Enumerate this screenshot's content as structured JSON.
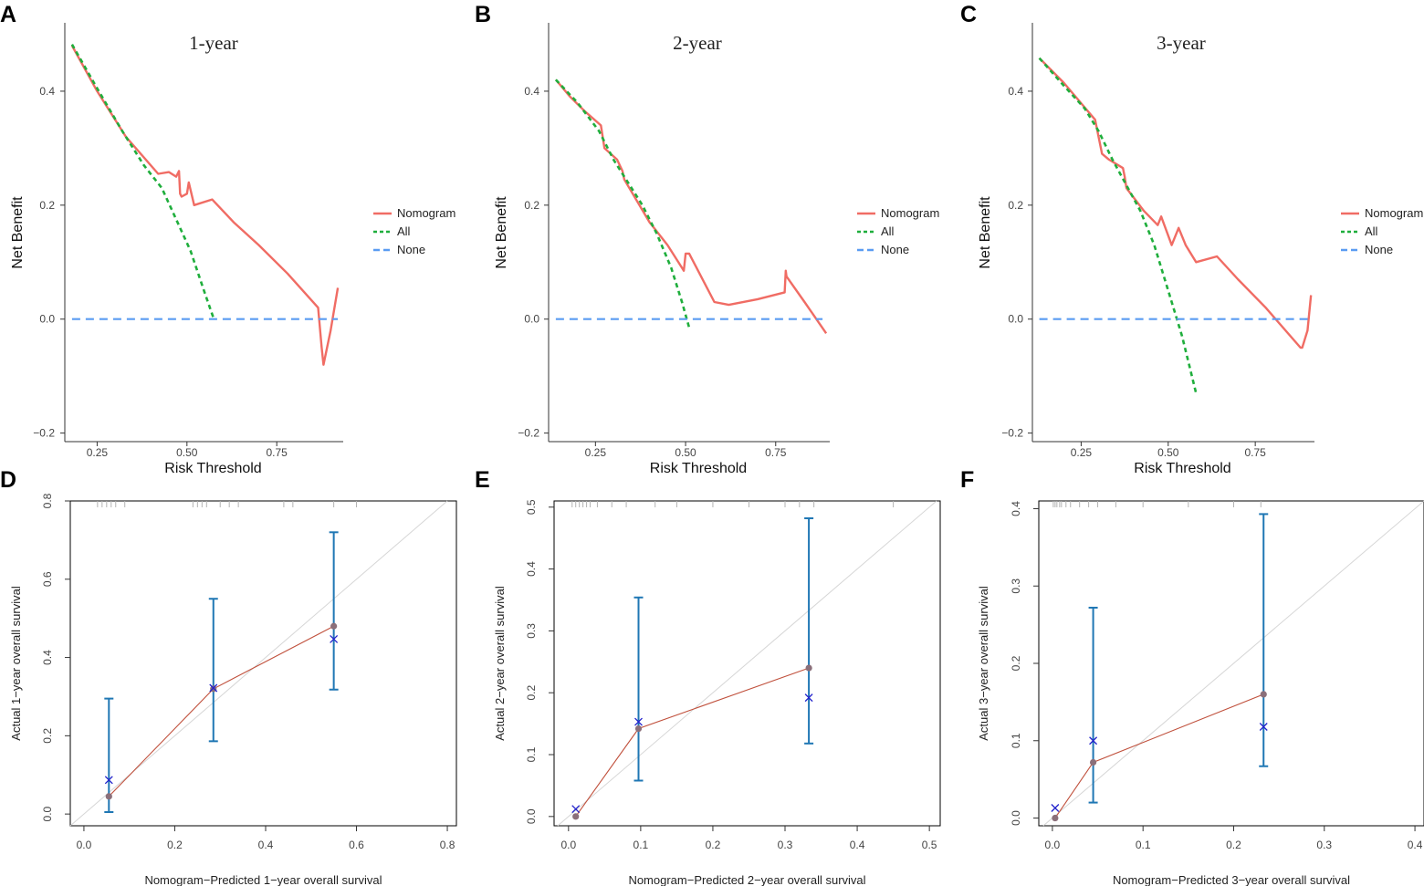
{
  "colors": {
    "nomogram": "#f06c64",
    "all": "#1fae3c",
    "none": "#5a9cf2",
    "ideal_line": "#d6d6d6",
    "cal_line": "#c0503c",
    "observed_point": "#8b6f7a",
    "error_bar": "#1f77b4",
    "estimate_cross": "#2222cc",
    "rug": "#b3b3b3"
  },
  "chart_data": [
    {
      "panel": "A",
      "type": "line",
      "title": "1-year",
      "xlabel": "Risk Threshold",
      "ylabel": "Net Benefit",
      "xlim": [
        0.16,
        0.935
      ],
      "ylim": [
        -0.215,
        0.52
      ],
      "xticks": [
        0.25,
        0.5,
        0.75
      ],
      "xtick_labels": [
        "0.25",
        "0.50",
        "0.75"
      ],
      "yticks": [
        -0.2,
        0.0,
        0.2,
        0.4
      ],
      "ytick_labels": [
        "−0.2",
        "0.0",
        "0.2",
        "0.4"
      ],
      "legend": [
        "Nomogram",
        "All",
        "None"
      ],
      "series": [
        {
          "name": "Nomogram",
          "style": "solid",
          "x": [
            0.18,
            0.25,
            0.33,
            0.42,
            0.45,
            0.47,
            0.478,
            0.481,
            0.485,
            0.5,
            0.505,
            0.52,
            0.57,
            0.63,
            0.7,
            0.78,
            0.865,
            0.875,
            0.88,
            0.9,
            0.92
          ],
          "y": [
            0.48,
            0.4,
            0.32,
            0.255,
            0.258,
            0.25,
            0.26,
            0.22,
            0.215,
            0.22,
            0.24,
            0.2,
            0.21,
            0.17,
            0.13,
            0.08,
            0.02,
            -0.05,
            -0.08,
            -0.02,
            0.055
          ]
        },
        {
          "name": "All",
          "style": "dotted",
          "x": [
            0.18,
            0.25,
            0.32,
            0.38,
            0.43,
            0.47,
            0.51,
            0.55,
            0.575
          ],
          "y": [
            0.482,
            0.405,
            0.33,
            0.27,
            0.23,
            0.175,
            0.12,
            0.045,
            0.0
          ]
        },
        {
          "name": "None",
          "style": "dashed",
          "x": [
            0.18,
            0.92
          ],
          "y": [
            0.0,
            0.0
          ]
        }
      ]
    },
    {
      "panel": "B",
      "type": "line",
      "title": "2-year",
      "xlabel": "Risk Threshold",
      "ylabel": "Net Benefit",
      "xlim": [
        0.12,
        0.9
      ],
      "ylim": [
        -0.215,
        0.52
      ],
      "xticks": [
        0.25,
        0.5,
        0.75
      ],
      "xtick_labels": [
        "0.25",
        "0.50",
        "0.75"
      ],
      "yticks": [
        -0.2,
        0.0,
        0.2,
        0.4
      ],
      "ytick_labels": [
        "−0.2",
        "0.0",
        "0.2",
        "0.4"
      ],
      "legend": [
        "Nomogram",
        "All",
        "None"
      ],
      "series": [
        {
          "name": "Nomogram",
          "style": "solid",
          "x": [
            0.14,
            0.18,
            0.22,
            0.265,
            0.275,
            0.31,
            0.325,
            0.33,
            0.4,
            0.45,
            0.49,
            0.495,
            0.5,
            0.51,
            0.58,
            0.62,
            0.7,
            0.775,
            0.778,
            0.78,
            0.83,
            0.89
          ],
          "y": [
            0.42,
            0.39,
            0.365,
            0.34,
            0.3,
            0.28,
            0.26,
            0.245,
            0.17,
            0.13,
            0.09,
            0.085,
            0.115,
            0.115,
            0.03,
            0.025,
            0.035,
            0.047,
            0.085,
            0.075,
            0.03,
            -0.025
          ]
        },
        {
          "name": "All",
          "style": "dotted",
          "x": [
            0.14,
            0.2,
            0.26,
            0.3,
            0.34,
            0.38,
            0.42,
            0.46,
            0.49,
            0.51
          ],
          "y": [
            0.42,
            0.38,
            0.33,
            0.28,
            0.24,
            0.2,
            0.15,
            0.09,
            0.03,
            -0.015
          ]
        },
        {
          "name": "None",
          "style": "dashed",
          "x": [
            0.14,
            0.88
          ],
          "y": [
            0.0,
            0.0
          ]
        }
      ]
    },
    {
      "panel": "C",
      "type": "line",
      "title": "3-year",
      "xlabel": "Risk Threshold",
      "ylabel": "Net Benefit",
      "xlim": [
        0.11,
        0.92
      ],
      "ylim": [
        -0.215,
        0.52
      ],
      "xticks": [
        0.25,
        0.5,
        0.75
      ],
      "xtick_labels": [
        "0.25",
        "0.50",
        "0.75"
      ],
      "yticks": [
        -0.2,
        0.0,
        0.2,
        0.4
      ],
      "ytick_labels": [
        "−0.2",
        "0.0",
        "0.2",
        "0.4"
      ],
      "legend": [
        "Nomogram",
        "All",
        "None"
      ],
      "series": [
        {
          "name": "Nomogram",
          "style": "solid",
          "x": [
            0.13,
            0.2,
            0.29,
            0.31,
            0.33,
            0.37,
            0.375,
            0.38,
            0.43,
            0.47,
            0.48,
            0.51,
            0.53,
            0.55,
            0.58,
            0.64,
            0.7,
            0.78,
            0.88,
            0.885,
            0.9,
            0.91
          ],
          "y": [
            0.458,
            0.415,
            0.35,
            0.29,
            0.28,
            0.265,
            0.25,
            0.23,
            0.19,
            0.165,
            0.18,
            0.13,
            0.16,
            0.13,
            0.1,
            0.11,
            0.07,
            0.02,
            -0.05,
            -0.05,
            -0.02,
            0.042
          ]
        },
        {
          "name": "All",
          "style": "dotted",
          "x": [
            0.13,
            0.2,
            0.26,
            0.3,
            0.34,
            0.38,
            0.42,
            0.46,
            0.5,
            0.54,
            0.58
          ],
          "y": [
            0.458,
            0.41,
            0.37,
            0.33,
            0.28,
            0.235,
            0.19,
            0.13,
            0.05,
            -0.03,
            -0.13
          ]
        },
        {
          "name": "None",
          "style": "dashed",
          "x": [
            0.13,
            0.91
          ],
          "y": [
            0.0,
            0.0
          ]
        }
      ]
    },
    {
      "panel": "D",
      "type": "scatter",
      "xlabel": "Nomogram−Predicted 1−year overall survival",
      "ylabel": "Actual 1−year overall survival",
      "xlim": [
        -0.03,
        0.82
      ],
      "ylim": [
        -0.03,
        0.8
      ],
      "xticks": [
        0.0,
        0.2,
        0.4,
        0.6,
        0.8
      ],
      "xtick_labels": [
        "0.0",
        "0.2",
        "0.4",
        "0.6",
        "0.8"
      ],
      "yticks": [
        0.0,
        0.2,
        0.4,
        0.6,
        0.8
      ],
      "ytick_labels": [
        "0.0",
        "0.2",
        "0.4",
        "0.6",
        "0.8"
      ],
      "points": [
        {
          "x": 0.055,
          "observed": 0.045,
          "lower": 0.005,
          "upper": 0.295,
          "estimate": 0.087
        },
        {
          "x": 0.285,
          "observed": 0.32,
          "lower": 0.186,
          "upper": 0.55,
          "estimate": 0.322
        },
        {
          "x": 0.55,
          "observed": 0.48,
          "lower": 0.318,
          "upper": 0.72,
          "estimate": 0.447
        }
      ],
      "rug": [
        0.03,
        0.04,
        0.05,
        0.06,
        0.07,
        0.09,
        0.24,
        0.25,
        0.26,
        0.27,
        0.3,
        0.32,
        0.34,
        0.44,
        0.46,
        0.55,
        0.6
      ]
    },
    {
      "panel": "E",
      "type": "scatter",
      "xlabel": "Nomogram−Predicted 2−year overall survival",
      "ylabel": "Actual 2−year overall survival",
      "xlim": [
        -0.02,
        0.515
      ],
      "ylim": [
        -0.015,
        0.51
      ],
      "xticks": [
        0.0,
        0.1,
        0.2,
        0.3,
        0.4,
        0.5
      ],
      "xtick_labels": [
        "0.0",
        "0.1",
        "0.2",
        "0.3",
        "0.4",
        "0.5"
      ],
      "yticks": [
        0.0,
        0.1,
        0.2,
        0.3,
        0.4,
        0.5
      ],
      "ytick_labels": [
        "0.0",
        "0.1",
        "0.2",
        "0.3",
        "0.4",
        "0.5"
      ],
      "points": [
        {
          "x": 0.01,
          "observed": 0.0,
          "lower": null,
          "upper": null,
          "estimate": 0.012
        },
        {
          "x": 0.097,
          "observed": 0.142,
          "lower": 0.058,
          "upper": 0.354,
          "estimate": 0.153
        },
        {
          "x": 0.333,
          "observed": 0.24,
          "lower": 0.118,
          "upper": 0.482,
          "estimate": 0.192
        }
      ],
      "rug": [
        0.005,
        0.01,
        0.015,
        0.02,
        0.025,
        0.03,
        0.04,
        0.06,
        0.08,
        0.12,
        0.15,
        0.2,
        0.25,
        0.3,
        0.32,
        0.34,
        0.45
      ]
    },
    {
      "panel": "F",
      "type": "scatter",
      "xlabel": "Nomogram−Predicted 3−year overall survival",
      "ylabel": "Actual 3−year overall survival",
      "xlim": [
        -0.015,
        0.41
      ],
      "ylim": [
        -0.01,
        0.41
      ],
      "xticks": [
        0.0,
        0.1,
        0.2,
        0.3,
        0.4
      ],
      "xtick_labels": [
        "0.0",
        "0.1",
        "0.2",
        "0.3",
        "0.4"
      ],
      "yticks": [
        0.0,
        0.1,
        0.2,
        0.3,
        0.4
      ],
      "ytick_labels": [
        "0.0",
        "0.1",
        "0.2",
        "0.3",
        "0.4"
      ],
      "points": [
        {
          "x": 0.003,
          "observed": 0.0,
          "lower": null,
          "upper": null,
          "estimate": 0.013
        },
        {
          "x": 0.045,
          "observed": 0.072,
          "lower": 0.02,
          "upper": 0.272,
          "estimate": 0.1
        },
        {
          "x": 0.233,
          "observed": 0.16,
          "lower": 0.067,
          "upper": 0.393,
          "estimate": 0.118
        }
      ],
      "rug": [
        0.001,
        0.003,
        0.005,
        0.008,
        0.01,
        0.015,
        0.02,
        0.03,
        0.04,
        0.05,
        0.07,
        0.1,
        0.15,
        0.2,
        0.23
      ]
    }
  ]
}
